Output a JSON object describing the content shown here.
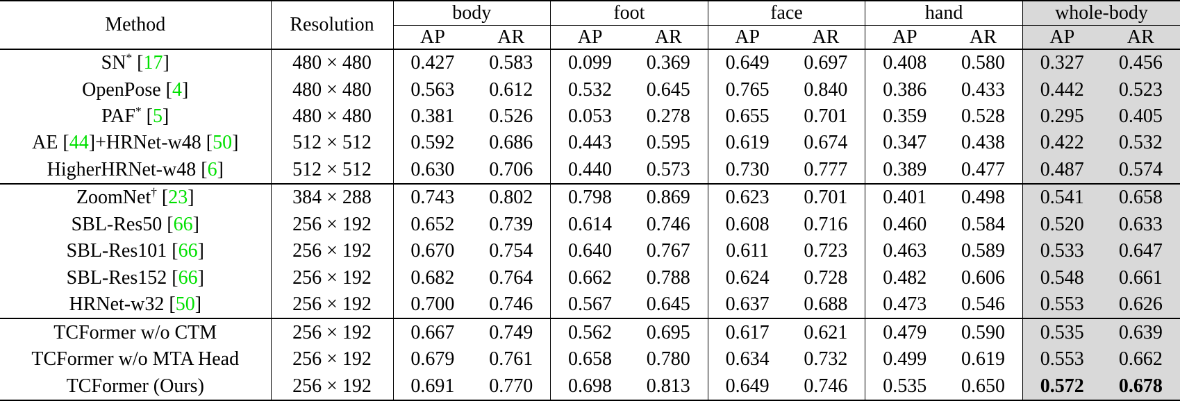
{
  "colors": {
    "citation_green": "#00e000",
    "wholebody_bg": "#d9d9d9"
  },
  "table": {
    "header": {
      "method_label": "Method",
      "resolution_label": "Resolution",
      "group_labels": [
        "body",
        "foot",
        "face",
        "hand",
        "whole-body"
      ],
      "subheader_labels": [
        "AP",
        "AR"
      ]
    },
    "rows": [
      {
        "method_parts": [
          {
            "text": "SN"
          },
          {
            "text": "*",
            "style": "sup"
          },
          {
            "text": " ["
          },
          {
            "text": "17",
            "style": "cite"
          },
          {
            "text": "]"
          }
        ],
        "resolution": "480 × 480",
        "values": [
          "0.427",
          "0.583",
          "0.099",
          "0.369",
          "0.649",
          "0.697",
          "0.408",
          "0.580",
          "0.327",
          "0.456"
        ],
        "section_start": false,
        "bold_wholebody": false
      },
      {
        "method_parts": [
          {
            "text": "OpenPose ["
          },
          {
            "text": "4",
            "style": "cite"
          },
          {
            "text": "]"
          }
        ],
        "resolution": "480 × 480",
        "values": [
          "0.563",
          "0.612",
          "0.532",
          "0.645",
          "0.765",
          "0.840",
          "0.386",
          "0.433",
          "0.442",
          "0.523"
        ],
        "section_start": false,
        "bold_wholebody": false
      },
      {
        "method_parts": [
          {
            "text": "PAF"
          },
          {
            "text": "*",
            "style": "sup"
          },
          {
            "text": " ["
          },
          {
            "text": "5",
            "style": "cite"
          },
          {
            "text": "]"
          }
        ],
        "resolution": "480 × 480",
        "values": [
          "0.381",
          "0.526",
          "0.053",
          "0.278",
          "0.655",
          "0.701",
          "0.359",
          "0.528",
          "0.295",
          "0.405"
        ],
        "section_start": false,
        "bold_wholebody": false
      },
      {
        "method_parts": [
          {
            "text": "AE ["
          },
          {
            "text": "44",
            "style": "cite"
          },
          {
            "text": "]+HRNet-w48 ["
          },
          {
            "text": "50",
            "style": "cite"
          },
          {
            "text": "]"
          }
        ],
        "resolution": "512 × 512",
        "values": [
          "0.592",
          "0.686",
          "0.443",
          "0.595",
          "0.619",
          "0.674",
          "0.347",
          "0.438",
          "0.422",
          "0.532"
        ],
        "section_start": false,
        "bold_wholebody": false
      },
      {
        "method_parts": [
          {
            "text": "HigherHRNet-w48 ["
          },
          {
            "text": "6",
            "style": "cite"
          },
          {
            "text": "]"
          }
        ],
        "resolution": "512 × 512",
        "values": [
          "0.630",
          "0.706",
          "0.440",
          "0.573",
          "0.730",
          "0.777",
          "0.389",
          "0.477",
          "0.487",
          "0.574"
        ],
        "section_start": false,
        "bold_wholebody": false
      },
      {
        "method_parts": [
          {
            "text": "ZoomNet"
          },
          {
            "text": "†",
            "style": "sup"
          },
          {
            "text": " ["
          },
          {
            "text": "23",
            "style": "cite"
          },
          {
            "text": "]"
          }
        ],
        "resolution": "384 × 288",
        "values": [
          "0.743",
          "0.802",
          "0.798",
          "0.869",
          "0.623",
          "0.701",
          "0.401",
          "0.498",
          "0.541",
          "0.658"
        ],
        "section_start": true,
        "bold_wholebody": false
      },
      {
        "method_parts": [
          {
            "text": "SBL-Res50 ["
          },
          {
            "text": "66",
            "style": "cite"
          },
          {
            "text": "]"
          }
        ],
        "resolution": "256 × 192",
        "values": [
          "0.652",
          "0.739",
          "0.614",
          "0.746",
          "0.608",
          "0.716",
          "0.460",
          "0.584",
          "0.520",
          "0.633"
        ],
        "section_start": false,
        "bold_wholebody": false
      },
      {
        "method_parts": [
          {
            "text": "SBL-Res101 ["
          },
          {
            "text": "66",
            "style": "cite"
          },
          {
            "text": "]"
          }
        ],
        "resolution": "256 × 192",
        "values": [
          "0.670",
          "0.754",
          "0.640",
          "0.767",
          "0.611",
          "0.723",
          "0.463",
          "0.589",
          "0.533",
          "0.647"
        ],
        "section_start": false,
        "bold_wholebody": false
      },
      {
        "method_parts": [
          {
            "text": "SBL-Res152 ["
          },
          {
            "text": "66",
            "style": "cite"
          },
          {
            "text": "]"
          }
        ],
        "resolution": "256 × 192",
        "values": [
          "0.682",
          "0.764",
          "0.662",
          "0.788",
          "0.624",
          "0.728",
          "0.482",
          "0.606",
          "0.548",
          "0.661"
        ],
        "section_start": false,
        "bold_wholebody": false
      },
      {
        "method_parts": [
          {
            "text": "HRNet-w32 ["
          },
          {
            "text": "50",
            "style": "cite"
          },
          {
            "text": "]"
          }
        ],
        "resolution": "256 × 192",
        "values": [
          "0.700",
          "0.746",
          "0.567",
          "0.645",
          "0.637",
          "0.688",
          "0.473",
          "0.546",
          "0.553",
          "0.626"
        ],
        "section_start": false,
        "bold_wholebody": false
      },
      {
        "method_parts": [
          {
            "text": "TCFormer w/o CTM"
          }
        ],
        "resolution": "256 × 192",
        "values": [
          "0.667",
          "0.749",
          "0.562",
          "0.695",
          "0.617",
          "0.621",
          "0.479",
          "0.590",
          "0.535",
          "0.639"
        ],
        "section_start": true,
        "bold_wholebody": false
      },
      {
        "method_parts": [
          {
            "text": "TCFormer w/o MTA Head"
          }
        ],
        "resolution": "256 × 192",
        "values": [
          "0.679",
          "0.761",
          "0.658",
          "0.780",
          "0.634",
          "0.732",
          "0.499",
          "0.619",
          "0.553",
          "0.662"
        ],
        "section_start": false,
        "bold_wholebody": false
      },
      {
        "method_parts": [
          {
            "text": "TCFormer (Ours)"
          }
        ],
        "resolution": "256 × 192",
        "values": [
          "0.691",
          "0.770",
          "0.698",
          "0.813",
          "0.649",
          "0.746",
          "0.535",
          "0.650",
          "0.572",
          "0.678"
        ],
        "section_start": false,
        "bold_wholebody": true
      }
    ]
  }
}
